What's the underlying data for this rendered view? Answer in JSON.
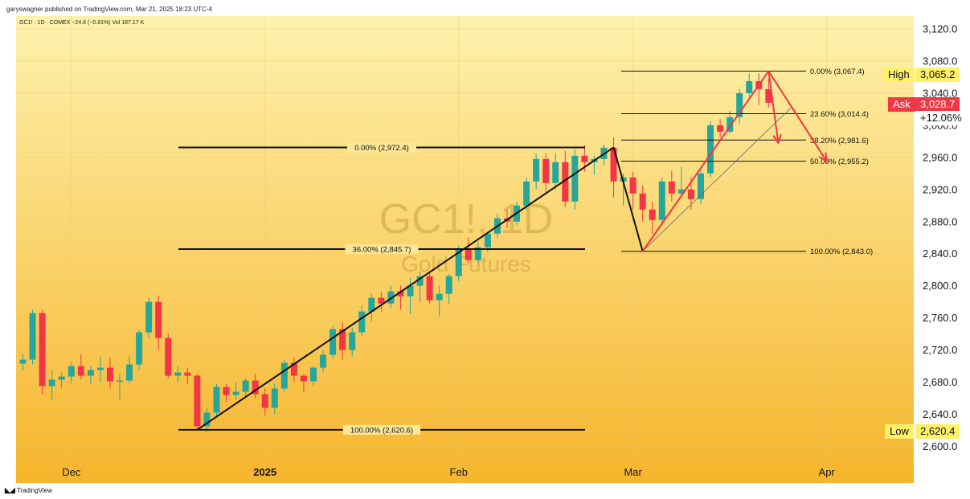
{
  "header": {
    "published": "garyswagner published on TradingView.com, Mar 21, 2025 18:23 UTC-4",
    "ticker": "GC1! · 1D · COMEX  −24.6 (−0.81%)  Vol 187.17 K"
  },
  "watermark": {
    "symbol": "GC1!, 1D",
    "name": "Gold Futures"
  },
  "footer": {
    "brand": "TradingView",
    "logo": "tradingview-logo-icon"
  },
  "colors": {
    "up": "#26a69a",
    "down": "#f23645",
    "bg_top": "#fdf0a6",
    "bg_bottom": "#f6b52c",
    "fib_red": "#f23645",
    "high_tag": "#fff06a",
    "ask_tag": "#f23645"
  },
  "price_tags": {
    "high_label": "High",
    "high_value": "3,065.2",
    "ask_label": "Ask",
    "ask_value": "3,028.7",
    "ask_change": "+12.06%",
    "low_label": "Low",
    "low_value": "2,620.4"
  },
  "chart_data": {
    "type": "candlestick",
    "instrument": "GC1!",
    "interval": "1D",
    "ylim": [
      2585,
      3140
    ],
    "y_ticks": [
      "3,120.0",
      "3,080.0",
      "3,040.0",
      "3,000.0",
      "2,960.0",
      "2,920.0",
      "2,880.0",
      "2,840.0",
      "2,800.0",
      "2,760.0",
      "2,720.0",
      "2,680.0",
      "2,640.0",
      "2,600.0"
    ],
    "y_tick_values": [
      3120,
      3080,
      3040,
      3000,
      2960,
      2920,
      2880,
      2840,
      2800,
      2760,
      2720,
      2680,
      2640,
      2600
    ],
    "x_ticks": [
      {
        "label": "Dec",
        "index": 5
      },
      {
        "label": "2025",
        "index": 25
      },
      {
        "label": "Feb",
        "index": 45
      },
      {
        "label": "Mar",
        "index": 63
      },
      {
        "label": "Apr",
        "index": 83
      }
    ],
    "candles": [
      [
        2703,
        2715,
        2695,
        2708
      ],
      [
        2708,
        2770,
        2702,
        2766
      ],
      [
        2766,
        2770,
        2665,
        2675
      ],
      [
        2675,
        2695,
        2658,
        2683
      ],
      [
        2683,
        2692,
        2672,
        2687
      ],
      [
        2687,
        2705,
        2678,
        2700
      ],
      [
        2700,
        2715,
        2683,
        2688
      ],
      [
        2688,
        2700,
        2678,
        2695
      ],
      [
        2695,
        2712,
        2680,
        2698
      ],
      [
        2698,
        2710,
        2672,
        2681
      ],
      [
        2681,
        2690,
        2658,
        2682
      ],
      [
        2682,
        2712,
        2678,
        2702
      ],
      [
        2702,
        2745,
        2695,
        2742
      ],
      [
        2742,
        2785,
        2735,
        2780
      ],
      [
        2780,
        2788,
        2720,
        2735
      ],
      [
        2735,
        2740,
        2685,
        2688
      ],
      [
        2688,
        2700,
        2680,
        2692
      ],
      [
        2692,
        2698,
        2678,
        2688
      ],
      [
        2688,
        2690,
        2620,
        2625
      ],
      [
        2625,
        2648,
        2618,
        2642
      ],
      [
        2642,
        2678,
        2638,
        2674
      ],
      [
        2674,
        2678,
        2655,
        2664
      ],
      [
        2664,
        2680,
        2658,
        2668
      ],
      [
        2668,
        2685,
        2660,
        2682
      ],
      [
        2682,
        2690,
        2660,
        2665
      ],
      [
        2665,
        2672,
        2638,
        2648
      ],
      [
        2648,
        2678,
        2640,
        2672
      ],
      [
        2672,
        2708,
        2668,
        2704
      ],
      [
        2704,
        2710,
        2680,
        2688
      ],
      [
        2688,
        2690,
        2668,
        2681
      ],
      [
        2681,
        2700,
        2675,
        2698
      ],
      [
        2698,
        2720,
        2692,
        2714
      ],
      [
        2714,
        2750,
        2710,
        2746
      ],
      [
        2746,
        2755,
        2708,
        2720
      ],
      [
        2720,
        2748,
        2712,
        2742
      ],
      [
        2742,
        2775,
        2738,
        2768
      ],
      [
        2768,
        2790,
        2755,
        2785
      ],
      [
        2785,
        2792,
        2768,
        2778
      ],
      [
        2778,
        2800,
        2772,
        2793
      ],
      [
        2793,
        2800,
        2770,
        2787
      ],
      [
        2787,
        2810,
        2765,
        2800
      ],
      [
        2800,
        2818,
        2780,
        2812
      ],
      [
        2812,
        2818,
        2778,
        2782
      ],
      [
        2782,
        2800,
        2762,
        2790
      ],
      [
        2790,
        2815,
        2778,
        2812
      ],
      [
        2812,
        2850,
        2806,
        2846
      ],
      [
        2846,
        2860,
        2828,
        2832
      ],
      [
        2832,
        2855,
        2828,
        2848
      ],
      [
        2848,
        2868,
        2842,
        2865
      ],
      [
        2865,
        2890,
        2860,
        2884
      ],
      [
        2884,
        2895,
        2872,
        2880
      ],
      [
        2880,
        2905,
        2875,
        2900
      ],
      [
        2900,
        2935,
        2895,
        2930
      ],
      [
        2930,
        2965,
        2920,
        2958
      ],
      [
        2958,
        2965,
        2915,
        2928
      ],
      [
        2928,
        2965,
        2920,
        2954
      ],
      [
        2954,
        2968,
        2898,
        2905
      ],
      [
        2905,
        2970,
        2895,
        2962
      ],
      [
        2962,
        2975,
        2942,
        2954
      ],
      [
        2954,
        2962,
        2938,
        2958
      ],
      [
        2958,
        2976,
        2950,
        2972
      ],
      [
        2972,
        2985,
        2910,
        2930
      ],
      [
        2930,
        2940,
        2900,
        2935
      ],
      [
        2935,
        2942,
        2895,
        2915
      ],
      [
        2915,
        2925,
        2880,
        2895
      ],
      [
        2895,
        2905,
        2865,
        2882
      ],
      [
        2882,
        2935,
        2875,
        2930
      ],
      [
        2930,
        2943,
        2905,
        2915
      ],
      [
        2915,
        2948,
        2910,
        2920
      ],
      [
        2920,
        2935,
        2895,
        2908
      ],
      [
        2908,
        2945,
        2902,
        2940
      ],
      [
        2940,
        3005,
        2935,
        3000
      ],
      [
        3000,
        3008,
        2985,
        2992
      ],
      [
        2992,
        3018,
        2990,
        3010
      ],
      [
        3010,
        3045,
        3002,
        3040
      ],
      [
        3040,
        3065,
        3035,
        3055
      ],
      [
        3055,
        3065,
        3025,
        3045
      ],
      [
        3045,
        3058,
        3022,
        3028
      ]
    ],
    "candles_note": "OHLC per daily session, open/high/low/close in USD",
    "fib_left": {
      "levels": [
        {
          "label": "0.00% (2,972.4)",
          "price": 2972.4
        },
        {
          "label": "36.00% (2,845.7)",
          "price": 2845.7
        },
        {
          "label": "100.00% (2,620.6)",
          "price": 2620.6
        }
      ]
    },
    "fib_right": {
      "levels": [
        {
          "label": "0.00% (3,067.4)",
          "price": 3067.4
        },
        {
          "label": "23.60% (3,014.4)",
          "price": 3014.4
        },
        {
          "label": "38.20% (2,981.6)",
          "price": 2981.6
        },
        {
          "label": "50.00% (2,955.2)",
          "price": 2955.2
        },
        {
          "label": "100.00% (2,843.0)",
          "price": 2843.0
        }
      ]
    },
    "trendlines": [
      {
        "color": "black",
        "from": [
          18,
          2620.6
        ],
        "to": [
          61,
          2972.4
        ]
      },
      {
        "color": "black",
        "from": [
          61,
          2972.4
        ],
        "to": [
          64,
          2843.0
        ]
      },
      {
        "color": "red",
        "from": [
          64,
          2843.0
        ],
        "to": [
          77,
          3067.4
        ]
      },
      {
        "color": "red",
        "from": [
          77,
          3067.4
        ],
        "to": [
          78,
          2978
        ]
      },
      {
        "color": "red",
        "from": [
          77,
          3067.4
        ],
        "to": [
          83,
          2955.2
        ]
      }
    ]
  }
}
